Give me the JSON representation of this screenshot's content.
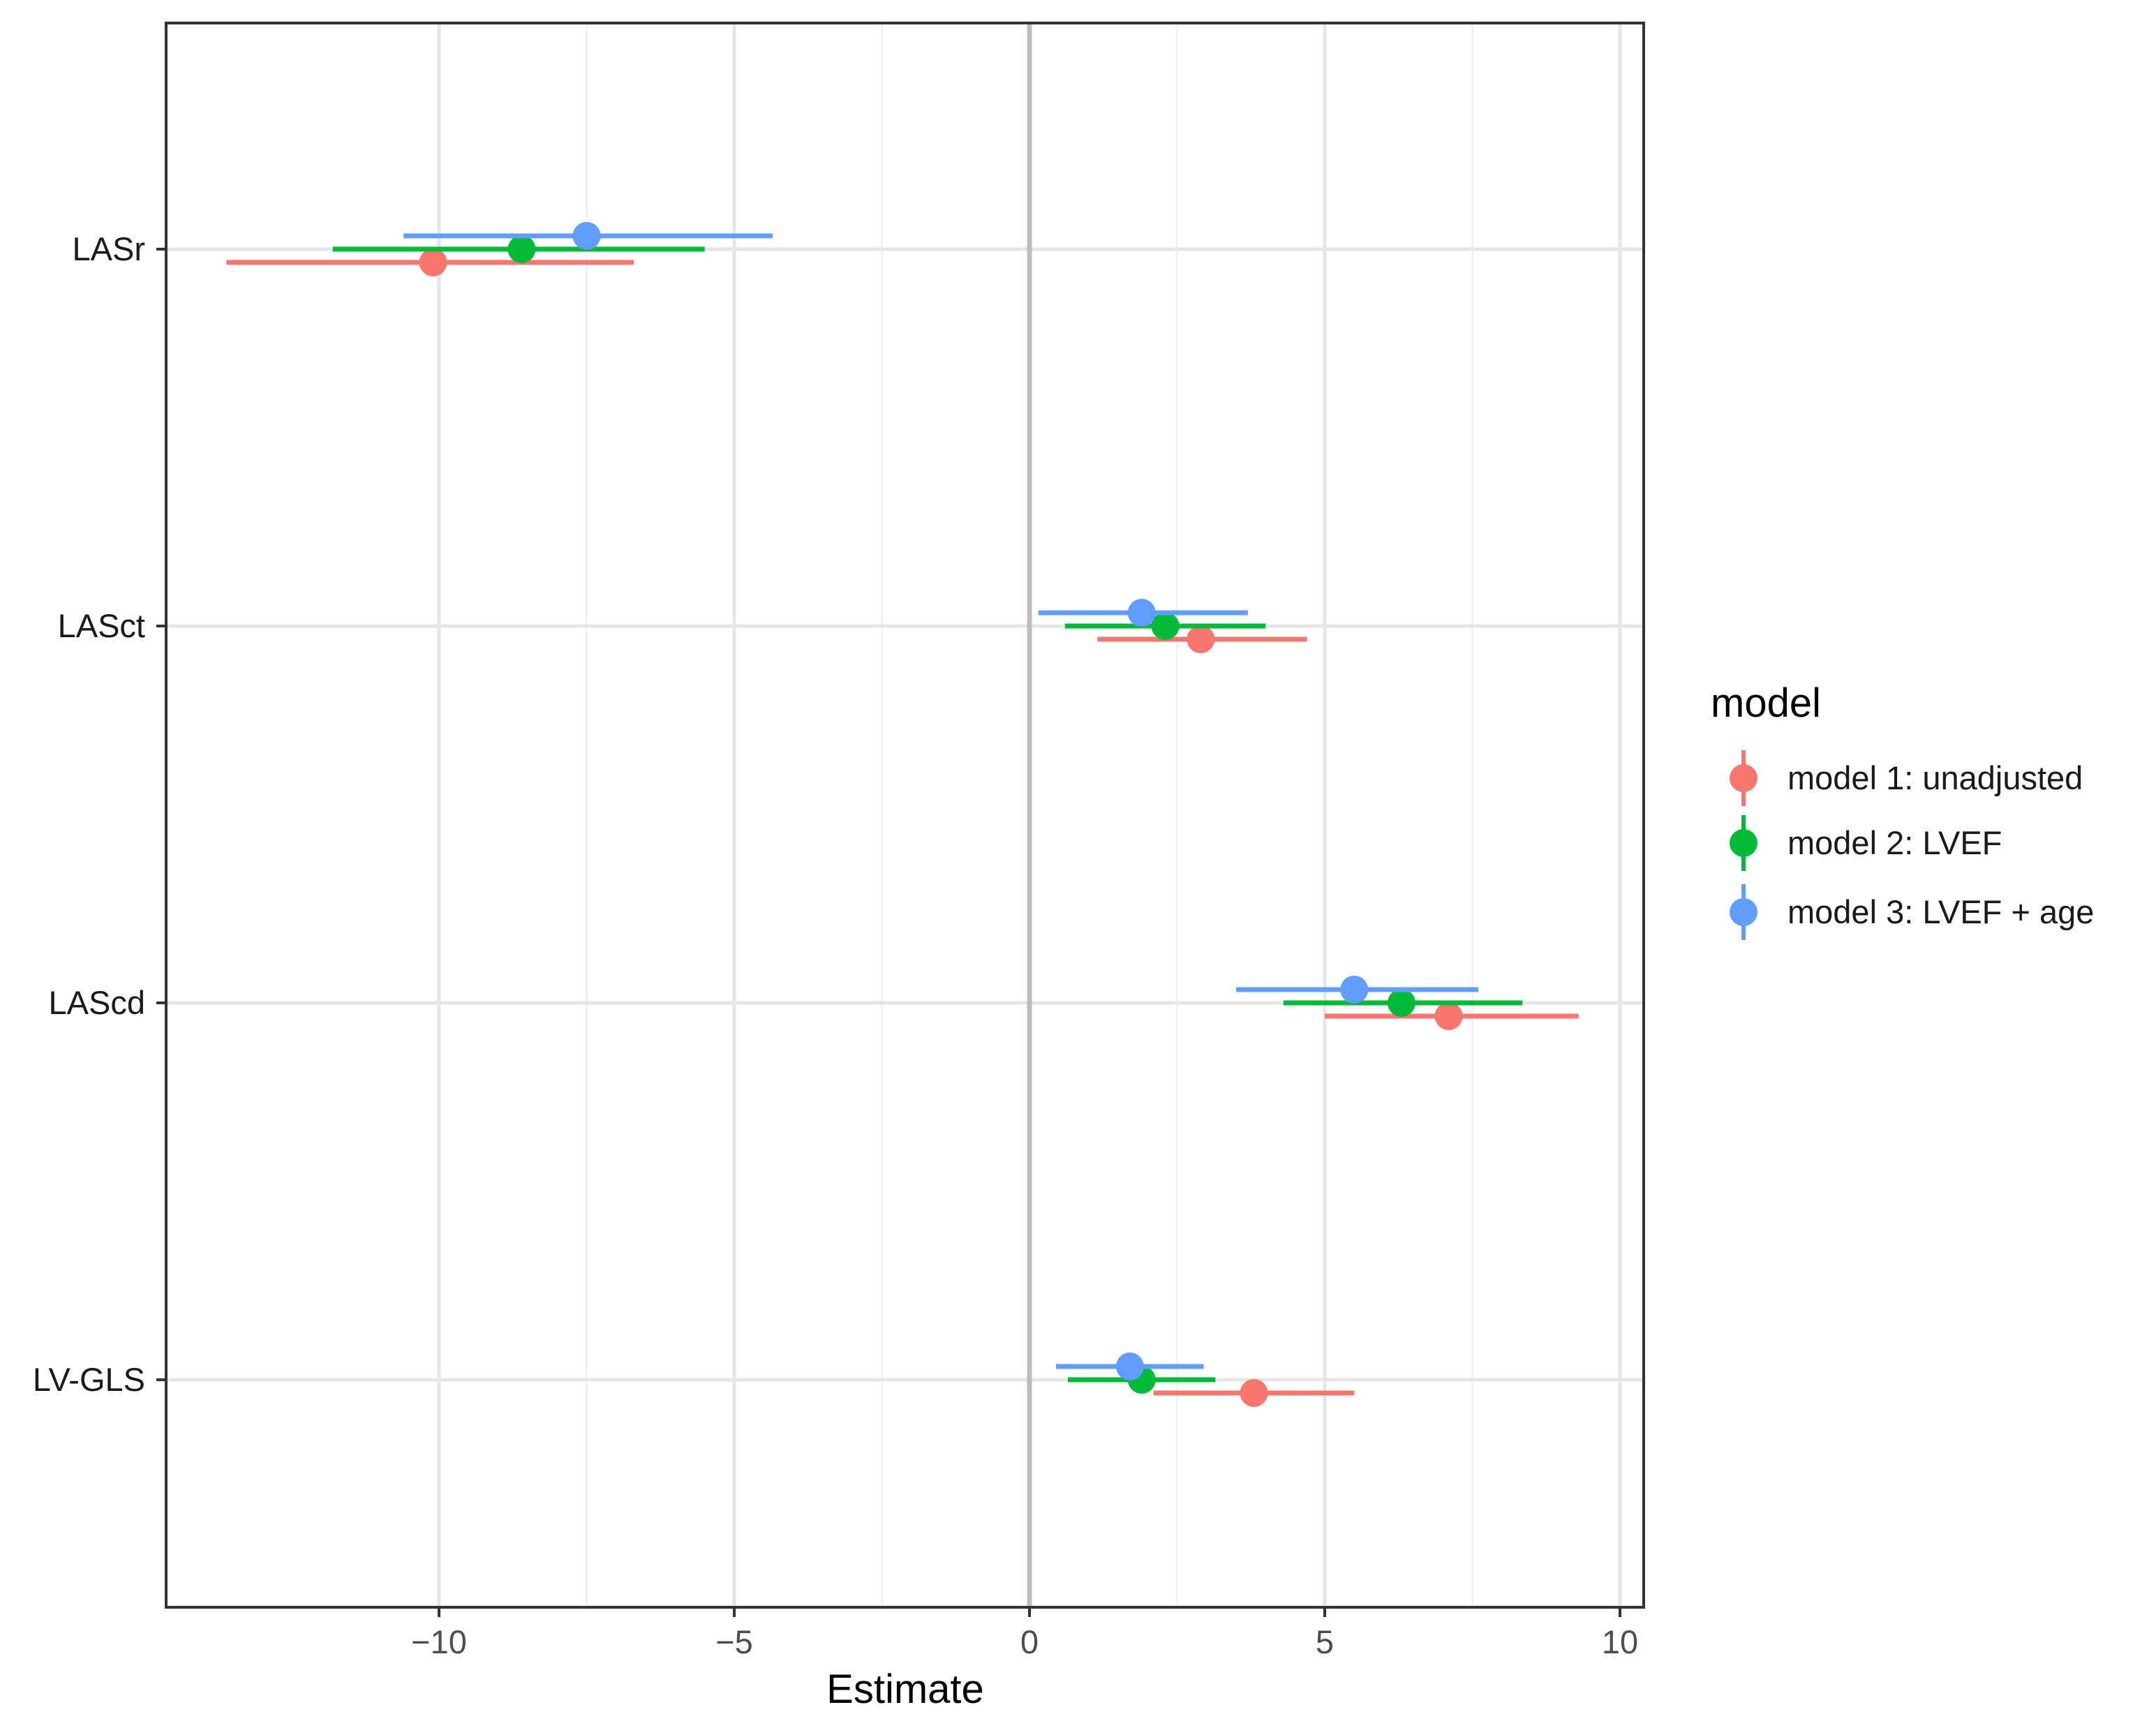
{
  "chart_data": {
    "type": "scatter",
    "subtype": "forest-plot",
    "title": "",
    "xlabel": "Estimate",
    "ylabel": "",
    "xlim": [
      -14.5,
      10.5
    ],
    "x_ticks": [
      -10,
      -5,
      0,
      5,
      10
    ],
    "x_tick_labels": [
      "−10",
      "−5",
      "0",
      "5",
      "10"
    ],
    "reference_line_x": 0,
    "grid": true,
    "categories": [
      "LASr",
      "LASct",
      "LAScd",
      "LV-GLS"
    ],
    "legend": {
      "title": "model",
      "placement": "right"
    },
    "series": [
      {
        "name": "model 1: unadjusted",
        "color": "#F8766D",
        "points": [
          {
            "category": "LASr",
            "estimate": -10.1,
            "ci_low": -13.6,
            "ci_high": -6.7
          },
          {
            "category": "LASct",
            "estimate": 2.9,
            "ci_low": 1.15,
            "ci_high": 4.7
          },
          {
            "category": "LAScd",
            "estimate": 7.1,
            "ci_low": 5.0,
            "ci_high": 9.3
          },
          {
            "category": "LV-GLS",
            "estimate": 3.8,
            "ci_low": 2.1,
            "ci_high": 5.5
          }
        ]
      },
      {
        "name": "model 2: LVEF",
        "color": "#00BA38",
        "points": [
          {
            "category": "LASr",
            "estimate": -8.6,
            "ci_low": -11.8,
            "ci_high": -5.5
          },
          {
            "category": "LASct",
            "estimate": 2.3,
            "ci_low": 0.6,
            "ci_high": 4.0
          },
          {
            "category": "LAScd",
            "estimate": 6.3,
            "ci_low": 4.3,
            "ci_high": 8.35
          },
          {
            "category": "LV-GLS",
            "estimate": 1.9,
            "ci_low": 0.65,
            "ci_high": 3.15
          }
        ]
      },
      {
        "name": "model 3: LVEF + age",
        "color": "#619CFF",
        "points": [
          {
            "category": "LASr",
            "estimate": -7.5,
            "ci_low": -10.6,
            "ci_high": -4.35
          },
          {
            "category": "LASct",
            "estimate": 1.9,
            "ci_low": 0.15,
            "ci_high": 3.7
          },
          {
            "category": "LAScd",
            "estimate": 5.5,
            "ci_low": 3.5,
            "ci_high": 7.6
          },
          {
            "category": "LV-GLS",
            "estimate": 1.7,
            "ci_low": 0.45,
            "ci_high": 2.95
          }
        ]
      }
    ]
  }
}
